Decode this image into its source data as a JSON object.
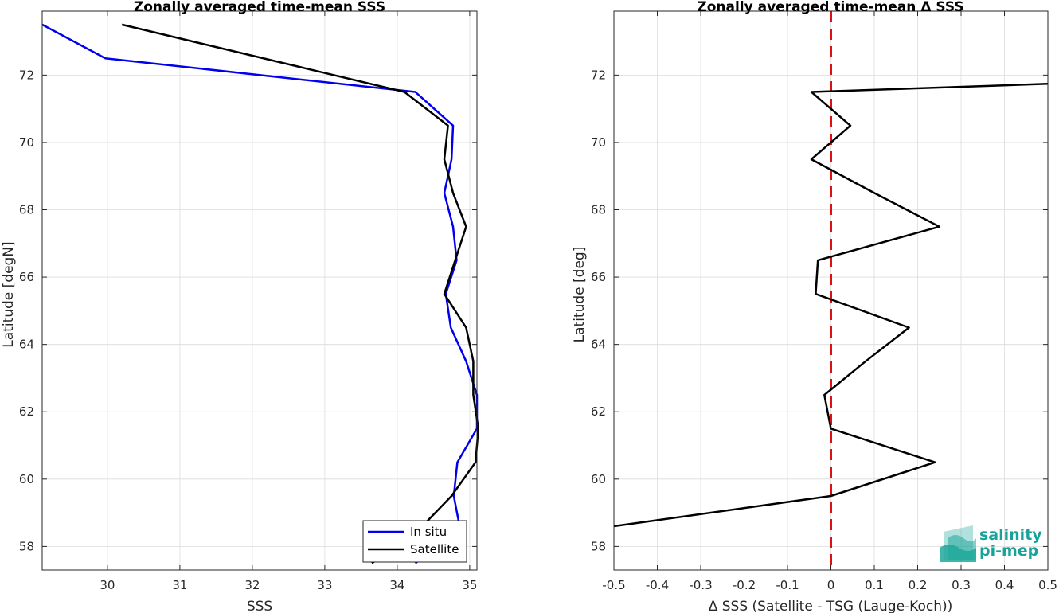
{
  "chart_data": [
    {
      "type": "line",
      "title": "Zonally averaged time-mean SSS",
      "xlabel": "SSS",
      "ylabel": "Latitude [degN]",
      "xlim": [
        29.1,
        35.1
      ],
      "ylim": [
        57.3,
        73.9
      ],
      "xticks": [
        30,
        31,
        32,
        33,
        34,
        35
      ],
      "yticks": [
        58,
        60,
        62,
        64,
        66,
        68,
        70,
        72
      ],
      "grid": true,
      "legend_position": "bottom-right",
      "series": [
        {
          "name": "In situ",
          "color": "#0000ee",
          "points": [
            [
              29.1,
              73.5
            ],
            [
              29.97,
              72.5
            ],
            [
              34.25,
              71.5
            ],
            [
              34.77,
              70.5
            ],
            [
              34.75,
              69.5
            ],
            [
              34.65,
              68.5
            ],
            [
              34.77,
              67.5
            ],
            [
              34.82,
              66.5
            ],
            [
              34.67,
              65.5
            ],
            [
              34.74,
              64.5
            ],
            [
              34.95,
              63.5
            ],
            [
              35.1,
              62.5
            ],
            [
              35.1,
              61.5
            ],
            [
              34.83,
              60.5
            ],
            [
              34.78,
              59.5
            ],
            [
              34.87,
              58.5
            ],
            [
              34.25,
              57.5
            ]
          ]
        },
        {
          "name": "Satellite",
          "color": "#000000",
          "points": [
            [
              30.2,
              73.5
            ],
            [
              34.1,
              71.5
            ],
            [
              34.7,
              70.5
            ],
            [
              34.65,
              69.5
            ],
            [
              34.77,
              68.5
            ],
            [
              34.95,
              67.5
            ],
            [
              34.8,
              66.5
            ],
            [
              34.65,
              65.5
            ],
            [
              34.95,
              64.5
            ],
            [
              35.05,
              63.5
            ],
            [
              35.05,
              62.5
            ],
            [
              35.12,
              61.5
            ],
            [
              35.08,
              60.5
            ],
            [
              34.75,
              59.5
            ],
            [
              34.3,
              58.5
            ],
            [
              33.65,
              57.5
            ]
          ]
        }
      ]
    },
    {
      "type": "line",
      "title": "Zonally averaged time-mean Δ SSS",
      "xlabel": "Δ SSS (Satellite - TSG (Lauge-Koch))",
      "ylabel": "Latitude [deg]",
      "xlim": [
        -0.5,
        0.5
      ],
      "ylim": [
        57.3,
        73.9
      ],
      "xticks": [
        -0.5,
        -0.4,
        -0.3,
        -0.2,
        -0.1,
        0,
        0.1,
        0.2,
        0.3,
        0.4,
        0.5
      ],
      "xtick_labels": [
        "-0.5",
        "-0.4",
        "-0.3",
        "-0.2",
        "-0.1",
        "0",
        "0.1",
        "0.2",
        "0.3",
        "0.4",
        "0.5"
      ],
      "yticks": [
        58,
        60,
        62,
        64,
        66,
        68,
        70,
        72
      ],
      "grid": true,
      "reference_line": {
        "x": 0,
        "color": "#dd1111",
        "style": "dashed"
      },
      "series": [
        {
          "color": "#000000",
          "points": [
            [
              0.5,
              71.74
            ],
            [
              -0.045,
              71.5
            ],
            [
              0.045,
              70.5
            ],
            [
              -0.045,
              69.5
            ],
            [
              0.1,
              68.5
            ],
            [
              0.25,
              67.5
            ],
            [
              -0.03,
              66.5
            ],
            [
              -0.035,
              65.5
            ],
            [
              0.18,
              64.5
            ],
            [
              0.08,
              63.5
            ],
            [
              -0.015,
              62.5
            ],
            [
              0,
              61.5
            ],
            [
              0.24,
              60.5
            ],
            [
              0,
              59.5
            ],
            [
              -0.5,
              58.6
            ]
          ]
        }
      ]
    }
  ],
  "logo": {
    "line1": "salinity",
    "line2": "pi-mep",
    "color": "#1fa89a",
    "text_color": "#17a39a"
  }
}
